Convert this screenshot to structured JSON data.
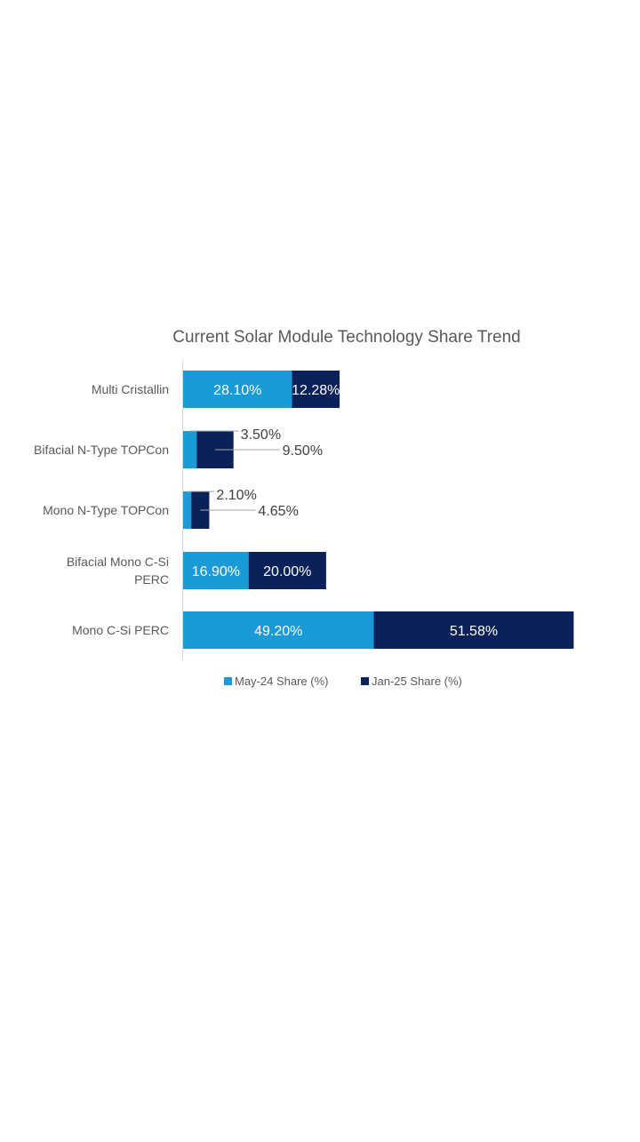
{
  "chart_data": {
    "type": "bar",
    "orientation": "horizontal",
    "stacked": true,
    "title": "Current Solar Module Technology Share Trend",
    "categories": [
      "Multi Cristallin",
      "Bifacial N-Type TOPCon",
      "Mono N-Type TOPCon",
      "Bifacial Mono C-Si PERC",
      "Mono C-Si PERC"
    ],
    "series": [
      {
        "name": "May-24 Share (%)",
        "color": "#1A9BD7",
        "values": [
          28.1,
          3.5,
          2.1,
          16.9,
          49.2
        ],
        "labels": [
          "28.10%",
          "3.50%",
          "2.10%",
          "16.90%",
          "49.20%"
        ]
      },
      {
        "name": "Jan-25 Share (%)",
        "color": "#0A2159",
        "values": [
          12.28,
          9.5,
          4.65,
          20.0,
          51.58
        ],
        "labels": [
          "12.28%",
          "9.50%",
          "4.65%",
          "20.00%",
          "51.58%"
        ]
      }
    ],
    "xlim": [
      0,
      100
    ],
    "grid": false,
    "xlabel": "",
    "ylabel": "",
    "legend_position": "bottom"
  }
}
